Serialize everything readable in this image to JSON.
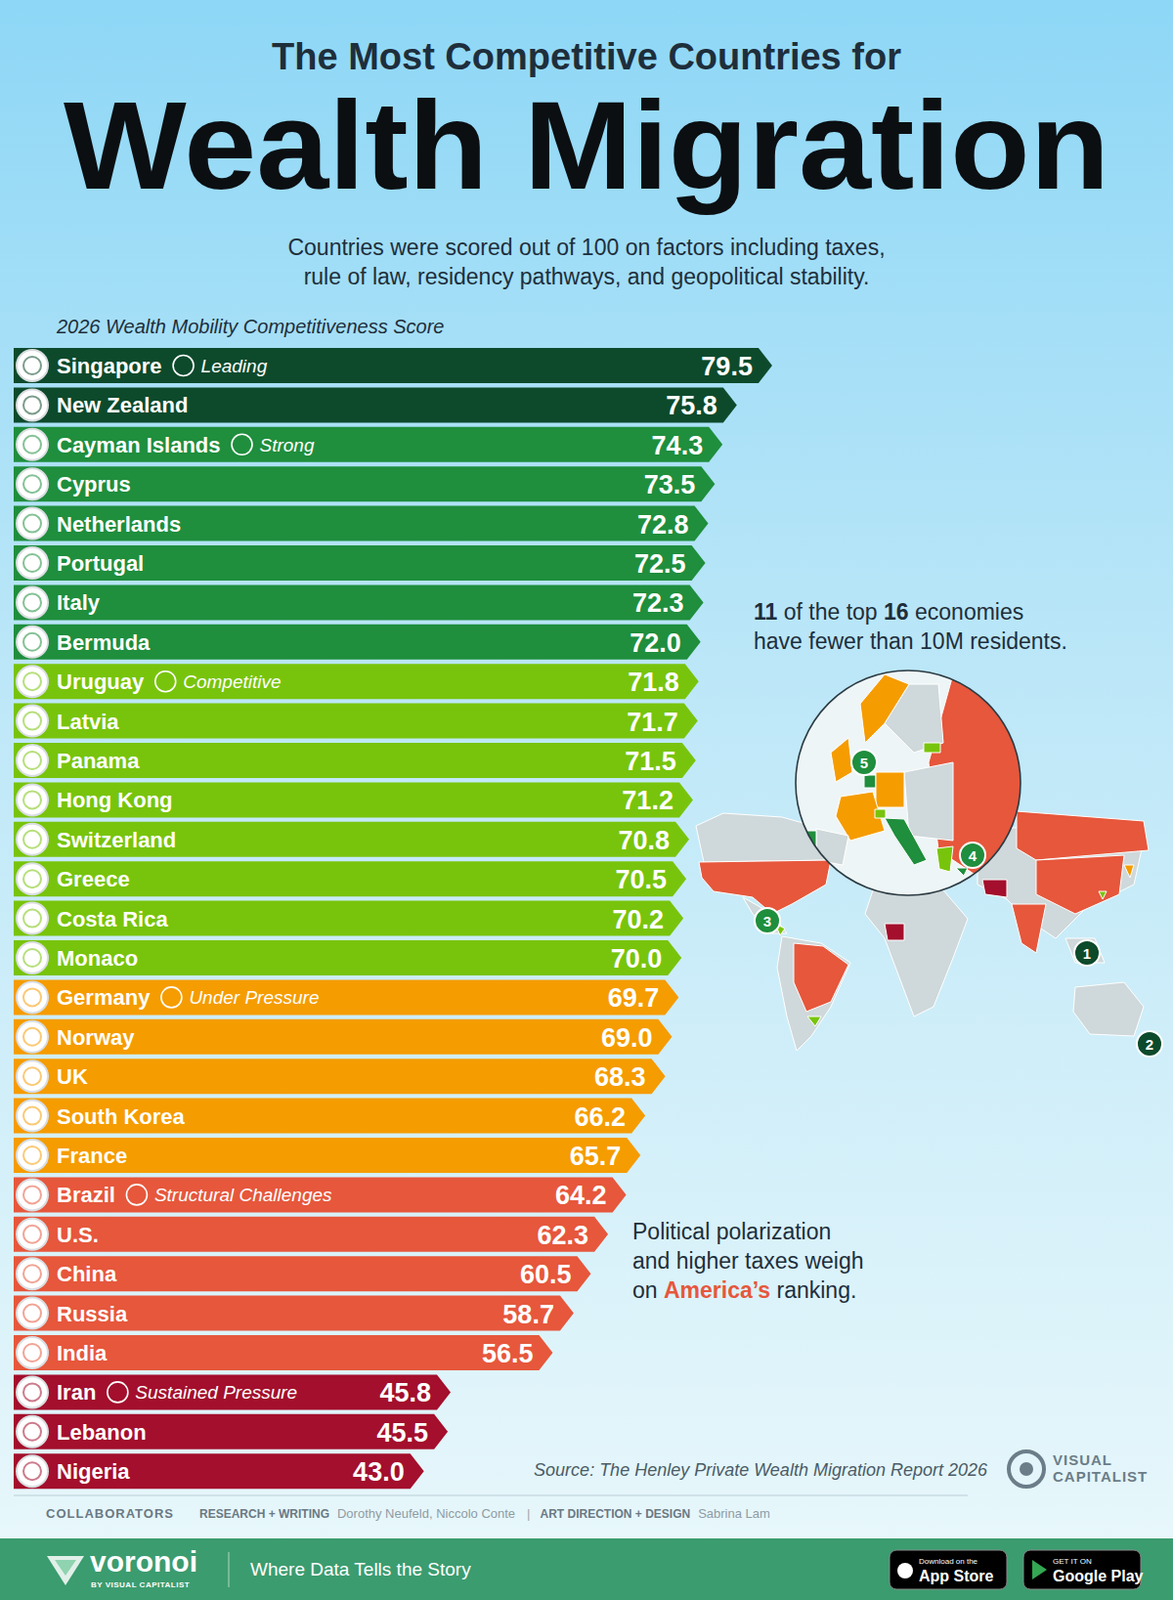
{
  "header": {
    "title_line1": "The Most Competitive Countries for",
    "title_line2": "Wealth Migration",
    "subtitle": [
      "Countries were scored out of 100 on factors including taxes,",
      "rule of law, residency pathways, and geopolitical stability."
    ]
  },
  "chart_data": {
    "type": "bar",
    "orientation": "horizontal",
    "title": "2026 Wealth Mobility Competitiveness Score",
    "categories": [
      "Singapore",
      "New Zealand",
      "Cayman Islands",
      "Cyprus",
      "Netherlands",
      "Portugal",
      "Italy",
      "Bermuda",
      "Uruguay",
      "Latvia",
      "Panama",
      "Hong Kong",
      "Switzerland",
      "Greece",
      "Costa Rica",
      "Monaco",
      "Germany",
      "Norway",
      "UK",
      "South Korea",
      "France",
      "Brazil",
      "U.S.",
      "China",
      "Russia",
      "India",
      "Iran",
      "Lebanon",
      "Nigeria"
    ],
    "values": [
      79.5,
      75.8,
      74.3,
      73.5,
      72.8,
      72.5,
      72.3,
      72.0,
      71.8,
      71.7,
      71.5,
      71.2,
      70.8,
      70.5,
      70.2,
      70.0,
      69.7,
      69.0,
      68.3,
      66.2,
      65.7,
      64.2,
      62.3,
      60.5,
      58.7,
      56.5,
      45.8,
      45.5,
      43.0
    ],
    "value_labels": [
      "79.5",
      "75.8",
      "74.3",
      "73.5",
      "72.8",
      "72.5",
      "72.3",
      "72.0",
      "71.8",
      "71.7",
      "71.5",
      "71.2",
      "70.8",
      "70.5",
      "70.2",
      "70.0",
      "69.7",
      "69.0",
      "68.3",
      "66.2",
      "65.7",
      "64.2",
      "62.3",
      "60.5",
      "58.7",
      "56.5",
      "45.8",
      "45.5",
      "43.0"
    ],
    "colors": [
      "#0d4a2c",
      "#0d4a2c",
      "#1f8e3d",
      "#1f8e3d",
      "#1f8e3d",
      "#1f8e3d",
      "#1f8e3d",
      "#1f8e3d",
      "#78c40c",
      "#78c40c",
      "#78c40c",
      "#78c40c",
      "#78c40c",
      "#78c40c",
      "#78c40c",
      "#78c40c",
      "#f59c00",
      "#f59c00",
      "#f59c00",
      "#f59c00",
      "#f59c00",
      "#e6573c",
      "#e6573c",
      "#e6573c",
      "#e6573c",
      "#e6573c",
      "#a30f2c",
      "#a30f2c",
      "#a30f2c"
    ],
    "tier_labels": [
      "Leading",
      null,
      "Strong",
      null,
      null,
      null,
      null,
      null,
      "Competitive",
      null,
      null,
      null,
      null,
      null,
      null,
      null,
      "Under Pressure",
      null,
      null,
      null,
      null,
      "Structural Challenges",
      null,
      null,
      null,
      null,
      "Sustained Pressure",
      null,
      null
    ],
    "xlim": [
      0,
      100
    ],
    "tick_labels": false,
    "data_labels": true
  },
  "annotations": [
    {
      "lines": [
        [
          {
            "text": "11",
            "bold": true
          },
          {
            "text": " of the top "
          },
          {
            "text": "16",
            "bold": true
          },
          {
            "text": " economies"
          }
        ],
        [
          {
            "text": "have fewer than 10M residents."
          }
        ]
      ]
    },
    {
      "lines": [
        [
          {
            "text": "Political polarization"
          }
        ],
        [
          {
            "text": "and higher taxes weigh"
          }
        ],
        [
          {
            "text": "on "
          },
          {
            "text": "America’s",
            "highlight": true
          },
          {
            "text": " ranking."
          }
        ]
      ]
    }
  ],
  "map": {
    "markers": [
      1,
      2,
      3,
      4,
      5
    ]
  },
  "source": "Source: The Henley Private Wealth Migration Report 2026",
  "logo": [
    "VISUAL",
    "CAPITALIST"
  ],
  "credits": {
    "label": "COLLABORATORS",
    "separator": "|",
    "roles": [
      {
        "role": "RESEARCH + WRITING",
        "names": "Dorothy Neufeld, Niccolo Conte"
      },
      {
        "role": "ART DIRECTION + DESIGN",
        "names": "Sabrina Lam"
      }
    ]
  },
  "footer": {
    "brand": "voronoi",
    "brand_sub": "BY VISUAL CAPITALIST",
    "tagline": "Where Data Tells the Story",
    "badges": [
      {
        "small": "Download on the",
        "large": "App Store"
      },
      {
        "small": "GET IT ON",
        "large": "Google Play"
      }
    ]
  }
}
